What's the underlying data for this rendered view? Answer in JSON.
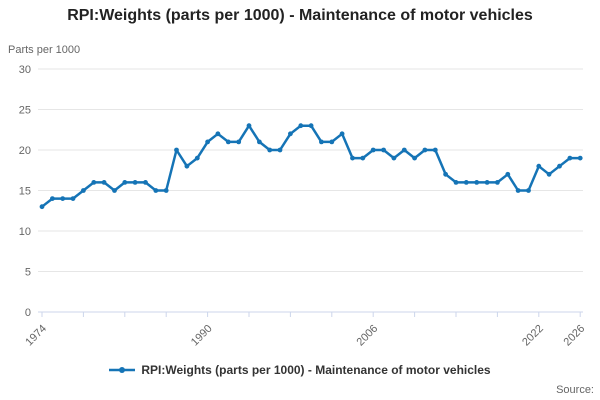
{
  "title": "RPI:Weights (parts per 1000) - Maintenance of motor vehicles",
  "source_label": "Source:",
  "legend": {
    "label": "RPI:Weights (parts per 1000) - Maintenance of motor vehicles",
    "position": "bottom"
  },
  "colors": {
    "accent": "#1574b6",
    "grid": "#e6e6e6",
    "axis": "#ccd6eb",
    "tick_text": "#666666",
    "title_text": "#222222"
  },
  "chart_data": {
    "type": "line",
    "title": "RPI:Weights (parts per 1000) - Maintenance of motor vehicles",
    "series_name": "RPI:Weights (parts per 1000) - Maintenance of motor vehicles",
    "xlabel": "",
    "ylabel": "Parts per 1000",
    "ylim": [
      0,
      30
    ],
    "y_ticks": [
      0,
      5,
      10,
      15,
      20,
      25,
      30
    ],
    "grid": "horizontal",
    "legend_position": "bottom",
    "x_ticks": [
      1974,
      1978,
      1982,
      1986,
      1990,
      1994,
      1998,
      2002,
      2006,
      2010,
      2014,
      2018,
      2022,
      2026
    ],
    "x_labeled_ticks": [
      1974,
      1990,
      2006,
      2022,
      2026
    ],
    "years": [
      1974,
      1975,
      1976,
      1977,
      1978,
      1979,
      1980,
      1981,
      1982,
      1983,
      1984,
      1985,
      1986,
      1987,
      1988,
      1989,
      1990,
      1991,
      1992,
      1993,
      1994,
      1995,
      1996,
      1997,
      1998,
      1999,
      2000,
      2001,
      2002,
      2003,
      2004,
      2005,
      2006,
      2007,
      2008,
      2009,
      2010,
      2011,
      2012,
      2013,
      2014,
      2015,
      2016,
      2017,
      2018,
      2019,
      2020,
      2021,
      2022,
      2023,
      2024,
      2025,
      2026
    ],
    "values": [
      13,
      14,
      14,
      14,
      15,
      16,
      16,
      15,
      16,
      16,
      16,
      15,
      15,
      20,
      18,
      19,
      21,
      22,
      21,
      21,
      23,
      21,
      20,
      20,
      22,
      23,
      23,
      21,
      21,
      22,
      19,
      19,
      20,
      20,
      19,
      20,
      19,
      20,
      20,
      17,
      16,
      16,
      16,
      16,
      16,
      17,
      15,
      15,
      18,
      17,
      18,
      19,
      19
    ]
  }
}
